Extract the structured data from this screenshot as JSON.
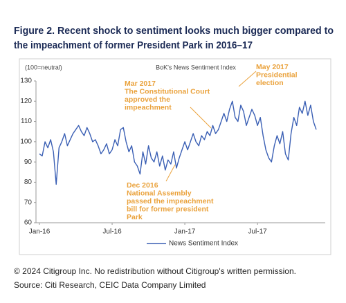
{
  "chart_data": {
    "type": "line",
    "title": [
      "Figure 2. Recent shock to sentiment looks much bigger compared to",
      "the impeachment of former President Park in 2016–17"
    ],
    "subtitle": "BoK's News Sentiment Index",
    "y_label": "(100=neutral)",
    "ylim": [
      60,
      130
    ],
    "yticks": [
      60,
      70,
      80,
      90,
      100,
      110,
      120,
      130
    ],
    "categories": [
      "Jan-16",
      null,
      null,
      null,
      null,
      null,
      null,
      null,
      null,
      null,
      null,
      null,
      null,
      null,
      null,
      null,
      null,
      null,
      null,
      null,
      null,
      null,
      null,
      null,
      null,
      null,
      "Jul-16",
      null,
      null,
      null,
      null,
      null,
      null,
      null,
      null,
      null,
      null,
      null,
      null,
      null,
      null,
      null,
      null,
      null,
      null,
      null,
      null,
      null,
      null,
      null,
      null,
      null,
      "Jan-17",
      null,
      null,
      null,
      null,
      null,
      null,
      null,
      null,
      null,
      null,
      null,
      null,
      null,
      null,
      null,
      null,
      null,
      null,
      null,
      null,
      null,
      null,
      null,
      null,
      null,
      "Jul-17",
      null,
      null,
      null,
      null,
      null,
      null,
      null,
      null,
      null,
      null,
      null,
      null,
      null,
      null,
      null,
      null,
      null,
      null,
      null,
      null,
      null
    ],
    "series": [
      {
        "name": "News Sentiment Index",
        "color": "#3a5fb4",
        "values": [
          94,
          93,
          100,
          97,
          101,
          95,
          79,
          97,
          100,
          104,
          98,
          101,
          104,
          106,
          108,
          105,
          103,
          107,
          104,
          100,
          101,
          98,
          94,
          96,
          99,
          94,
          96,
          101,
          98,
          106,
          107,
          100,
          95,
          98,
          90,
          88,
          84,
          95,
          89,
          98,
          92,
          90,
          95,
          88,
          93,
          86,
          91,
          89,
          95,
          87,
          92,
          96,
          100,
          96,
          100,
          104,
          100,
          98,
          103,
          101,
          105,
          103,
          108,
          104,
          106,
          110,
          114,
          110,
          116,
          120,
          112,
          110,
          118,
          115,
          108,
          112,
          116,
          113,
          108,
          112,
          103,
          96,
          92,
          90,
          98,
          103,
          99,
          105,
          94,
          91,
          104,
          112,
          108,
          117,
          114,
          120,
          113,
          118,
          110,
          106
        ]
      }
    ],
    "annotations": [
      [
        "Mar 2017",
        "The Constitutional Court",
        "approved the",
        "impeachment"
      ],
      [
        "May 2017",
        "Presidential",
        "election"
      ],
      [
        "Dec 2016",
        "National Assembly",
        "passed the impeachment",
        "bill for former president",
        "Park"
      ]
    ],
    "annotation_color": "#eaa23c",
    "footer": [
      "© 2024 Citigroup Inc. No redistribution without Citigroup's written permission.",
      "Source: Citi Research, CEIC Data Company Limited"
    ]
  }
}
